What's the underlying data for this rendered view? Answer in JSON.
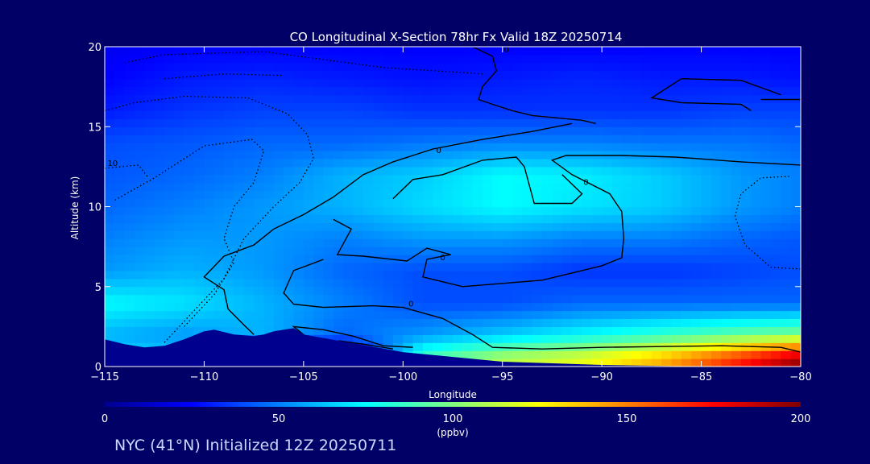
{
  "chart_data": {
    "type": "heatmap",
    "title": "CO Longitudinal X-Section 78hr  Fx Valid 18Z 20250714",
    "xlabel": "Longitude",
    "ylabel": "Altitude (km)",
    "xlim": [
      -115,
      -80
    ],
    "ylim": [
      0,
      20
    ],
    "x_ticks": [
      -115,
      -110,
      -105,
      -100,
      -95,
      -90,
      -85,
      -80
    ],
    "x_tick_labels": [
      "−115",
      "−110",
      "−105",
      "−100",
      "−95",
      "−90",
      "−85",
      "−80"
    ],
    "y_ticks": [
      0,
      5,
      10,
      15,
      20
    ],
    "y_tick_labels": [
      "0",
      "5",
      "10",
      "15",
      "20"
    ],
    "x": [
      -115,
      -111,
      -107,
      -103,
      -99,
      -95,
      -91,
      -87,
      -83,
      -80
    ],
    "y": [
      0.5,
      2,
      4,
      6,
      8,
      10,
      12,
      14,
      16,
      18,
      20
    ],
    "z": [
      [
        70,
        65,
        0,
        0,
        90,
        110,
        120,
        140,
        170,
        195
      ],
      [
        60,
        55,
        60,
        45,
        55,
        65,
        75,
        85,
        95,
        100
      ],
      [
        75,
        70,
        60,
        50,
        40,
        40,
        45,
        45,
        45,
        45
      ],
      [
        55,
        60,
        55,
        45,
        40,
        40,
        35,
        35,
        38,
        40
      ],
      [
        50,
        55,
        55,
        50,
        55,
        55,
        50,
        50,
        45,
        42
      ],
      [
        45,
        50,
        55,
        60,
        68,
        75,
        70,
        65,
        55,
        50
      ],
      [
        42,
        45,
        50,
        60,
        65,
        75,
        72,
        65,
        55,
        50
      ],
      [
        40,
        42,
        45,
        45,
        48,
        50,
        50,
        48,
        48,
        45
      ],
      [
        30,
        35,
        38,
        38,
        35,
        35,
        35,
        35,
        38,
        38
      ],
      [
        25,
        30,
        32,
        30,
        28,
        30,
        32,
        30,
        30,
        28
      ],
      [
        22,
        25,
        25,
        25,
        25,
        25,
        25,
        25,
        25,
        25
      ]
    ],
    "contour_labels": [
      "10",
      "0",
      "0",
      "0",
      "0",
      "0"
    ],
    "colorbar": {
      "min": 0,
      "max": 200,
      "ticks": [
        0,
        50,
        100,
        150,
        200
      ],
      "tick_labels": [
        "0",
        "50",
        "100",
        "150",
        "200"
      ],
      "unit": "(ppbv)"
    },
    "terrain": {
      "x": [
        -115,
        -114,
        -113,
        -112,
        -111,
        -110,
        -109.5,
        -108.5,
        -107.5,
        -107,
        -106.5,
        -105.5,
        -105,
        -100,
        -95,
        -90,
        -85,
        -80
      ],
      "alt": [
        1.7,
        1.4,
        1.2,
        1.3,
        1.7,
        2.2,
        2.3,
        2.0,
        1.9,
        2.0,
        2.2,
        2.4,
        2.0,
        0.9,
        0.3,
        0.1,
        0.0,
        0.0
      ]
    },
    "colors": {
      "background": "#000066",
      "colormap": [
        "#00008f",
        "#0000ff",
        "#0080ff",
        "#00ffff",
        "#80ff80",
        "#ffff00",
        "#ff8000",
        "#ff0000",
        "#800000"
      ]
    },
    "grid": false,
    "legend": "none"
  },
  "footer": "NYC (41°N) Initialized 12Z 20250711"
}
